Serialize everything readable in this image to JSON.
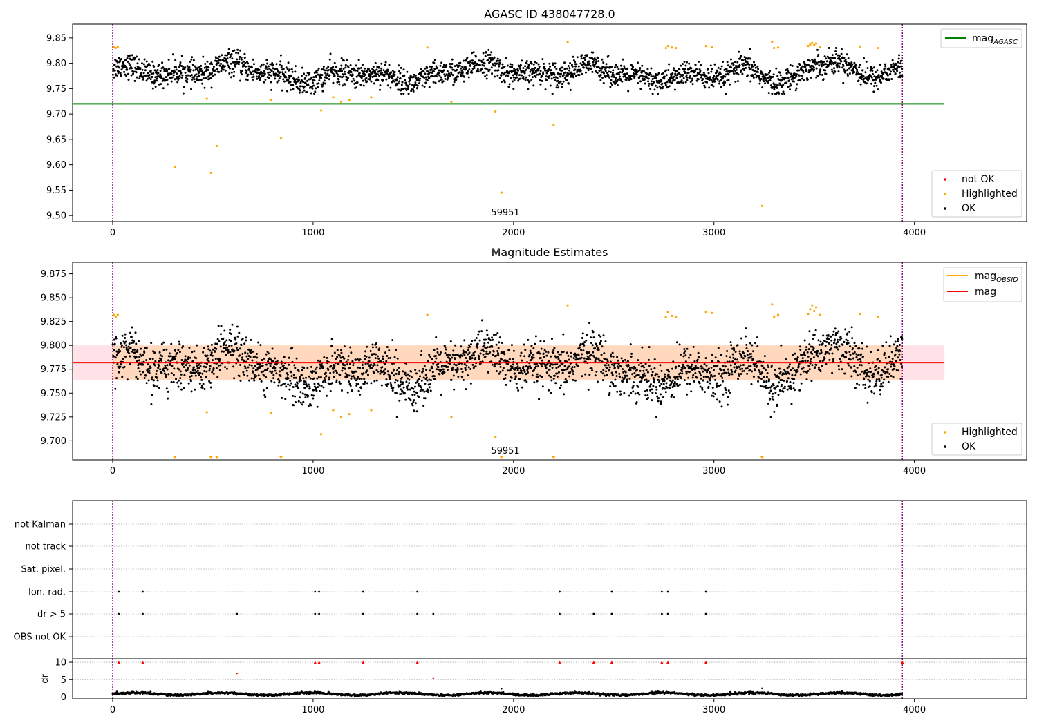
{
  "chart_data": [
    {
      "type": "scatter",
      "title": "AGASC ID 438047728.0",
      "xlim": [
        -200,
        4560
      ],
      "ylim": [
        9.488,
        9.877
      ],
      "xticks": [
        0,
        1000,
        2000,
        3000,
        4000
      ],
      "yticks": [
        9.5,
        9.55,
        9.6,
        9.65,
        9.7,
        9.75,
        9.8,
        9.85
      ],
      "ytick_labels": [
        "9.50",
        "9.55",
        "9.60",
        "9.65",
        "9.70",
        "9.75",
        "9.80",
        "9.85"
      ],
      "vlines": [
        0,
        3940
      ],
      "hline": {
        "name": "mag_AGASC",
        "y": 9.72,
        "x_range": [
          -200,
          4150
        ],
        "color": "#008000"
      },
      "annotation": {
        "text": "59951",
        "x": 1970,
        "y": 9.503
      },
      "ok_series": {
        "name": "OK",
        "color": "#000000",
        "x_range": [
          0,
          3940
        ],
        "y_range": [
          9.74,
          9.83
        ]
      },
      "highlighted_series": {
        "name": "Highlighted",
        "color": "#ffa500",
        "points": [
          [
            5,
            9.832
          ],
          [
            15,
            9.83
          ],
          [
            25,
            9.832
          ],
          [
            310,
            9.596
          ],
          [
            470,
            9.73
          ],
          [
            490,
            9.584
          ],
          [
            520,
            9.637
          ],
          [
            790,
            9.728
          ],
          [
            840,
            9.652
          ],
          [
            1040,
            9.707
          ],
          [
            1100,
            9.733
          ],
          [
            1140,
            9.724
          ],
          [
            1180,
            9.727
          ],
          [
            1290,
            9.733
          ],
          [
            1570,
            9.831
          ],
          [
            1690,
            9.724
          ],
          [
            1910,
            9.705
          ],
          [
            1940,
            9.545
          ],
          [
            2200,
            9.678
          ],
          [
            2270,
            9.842
          ],
          [
            2760,
            9.83
          ],
          [
            2770,
            9.834
          ],
          [
            2790,
            9.831
          ],
          [
            2810,
            9.83
          ],
          [
            2960,
            9.834
          ],
          [
            2990,
            9.832
          ],
          [
            3240,
            9.519
          ],
          [
            3290,
            9.842
          ],
          [
            3300,
            9.83
          ],
          [
            3320,
            9.831
          ],
          [
            3470,
            9.834
          ],
          [
            3480,
            9.837
          ],
          [
            3490,
            9.84
          ],
          [
            3500,
            9.836
          ],
          [
            3510,
            9.839
          ],
          [
            3530,
            9.832
          ],
          [
            3730,
            9.833
          ],
          [
            3820,
            9.83
          ]
        ]
      },
      "legend_top": [
        {
          "label": "mag",
          "subscript": "AGASC",
          "color": "#008000"
        }
      ],
      "legend_bottom": [
        {
          "label": "not OK",
          "color": "#ff0000"
        },
        {
          "label": "Highlighted",
          "color": "#ffa500"
        },
        {
          "label": "OK",
          "color": "#000000"
        }
      ]
    },
    {
      "type": "scatter",
      "title": "Magnitude Estimates",
      "xlim": [
        -200,
        4560
      ],
      "ylim": [
        9.68,
        9.887
      ],
      "xticks": [
        0,
        1000,
        2000,
        3000,
        4000
      ],
      "yticks": [
        9.7,
        9.725,
        9.75,
        9.775,
        9.8,
        9.825,
        9.85,
        9.875
      ],
      "ytick_labels": [
        "9.700",
        "9.725",
        "9.750",
        "9.775",
        "9.800",
        "9.825",
        "9.850",
        "9.875"
      ],
      "vlines": [
        0,
        3940
      ],
      "mag_line": {
        "name": "mag",
        "y": 9.782,
        "x_range": [
          -200,
          4150
        ],
        "color": "#ff0000"
      },
      "mag_band": {
        "y_low": 9.764,
        "y_high": 9.8,
        "x_range": [
          -200,
          4150
        ],
        "color": "#ffc0cb"
      },
      "annotation": {
        "text": "59951",
        "x": 1970,
        "y": 9.689
      },
      "ok_series": {
        "name": "OK",
        "color": "#000000",
        "x_range": [
          0,
          3940
        ],
        "y_range": [
          9.725,
          9.83
        ]
      },
      "highlighted_series": {
        "name": "Highlighted",
        "color": "#ffa500",
        "points": [
          [
            5,
            9.832
          ],
          [
            15,
            9.83
          ],
          [
            25,
            9.832
          ],
          [
            470,
            9.73
          ],
          [
            790,
            9.729
          ],
          [
            1040,
            9.707
          ],
          [
            1100,
            9.732
          ],
          [
            1140,
            9.725
          ],
          [
            1180,
            9.728
          ],
          [
            1290,
            9.732
          ],
          [
            1570,
            9.832
          ],
          [
            1690,
            9.725
          ],
          [
            1910,
            9.704
          ],
          [
            2270,
            9.842
          ],
          [
            2760,
            9.83
          ],
          [
            2770,
            9.835
          ],
          [
            2790,
            9.831
          ],
          [
            2810,
            9.83
          ],
          [
            2960,
            9.835
          ],
          [
            2990,
            9.834
          ],
          [
            3290,
            9.843
          ],
          [
            3300,
            9.83
          ],
          [
            3320,
            9.832
          ],
          [
            3470,
            9.833
          ],
          [
            3480,
            9.838
          ],
          [
            3490,
            9.842
          ],
          [
            3500,
            9.836
          ],
          [
            3510,
            9.84
          ],
          [
            3530,
            9.832
          ],
          [
            3730,
            9.833
          ],
          [
            3820,
            9.83
          ]
        ]
      },
      "offscale_markers": {
        "color": "#ffa500",
        "x": [
          310,
          490,
          520,
          840,
          1940,
          2200,
          3240
        ]
      },
      "legend_top": [
        {
          "label": "mag",
          "subscript": "OBSID",
          "color": "#ffa500"
        },
        {
          "label": "mag",
          "subscript": "",
          "color": "#ff0000"
        }
      ],
      "legend_bottom": [
        {
          "label": "Highlighted",
          "color": "#ffa500"
        },
        {
          "label": "OK",
          "color": "#000000"
        }
      ]
    },
    {
      "type": "scatter",
      "title": "",
      "xlim": [
        -200,
        4560
      ],
      "vlines": [
        0,
        3940
      ],
      "flag_rows": [
        "not Kalman",
        "not track",
        "Sat. pixel.",
        "Ion. rad.",
        "dr > 5",
        "OBS not OK"
      ],
      "flags": {
        "Ion. rad.": [
          30,
          150,
          1010,
          1030,
          1250,
          1520,
          2230,
          2490,
          2740,
          2770,
          2960
        ],
        "dr > 5": [
          30,
          150,
          620,
          1010,
          1030,
          1250,
          1520,
          1600,
          2230,
          2400,
          2490,
          2740,
          2770,
          2960
        ]
      }
    },
    {
      "type": "scatter",
      "title": "",
      "xlim": [
        -200,
        4560
      ],
      "ylim": [
        -0.5,
        11
      ],
      "yticks": [
        0,
        5,
        10
      ],
      "ytick_labels": [
        "0",
        "5",
        "10"
      ],
      "xticks": [
        0,
        1000,
        2000,
        3000,
        4000
      ],
      "ylabel": "dr",
      "vlines": [
        0,
        3940
      ],
      "dr_series": {
        "name": "dr",
        "color": "#000000",
        "x_range": [
          0,
          3940
        ],
        "y_range": [
          0.2,
          1.6
        ]
      },
      "dr_high_points": [
        [
          30,
          10
        ],
        [
          150,
          10
        ],
        [
          1010,
          10
        ],
        [
          1030,
          10
        ],
        [
          1250,
          10
        ],
        [
          1520,
          10
        ],
        [
          2230,
          10
        ],
        [
          2400,
          10
        ],
        [
          2490,
          10
        ],
        [
          2740,
          10
        ],
        [
          2770,
          10
        ],
        [
          2960,
          10
        ],
        [
          3940,
          10
        ]
      ],
      "dr_outliers": [
        [
          620,
          6.8
        ],
        [
          1600,
          5.3
        ],
        [
          1940,
          2.4
        ],
        [
          3240,
          2.5
        ]
      ],
      "outlier_colors": [
        "#ff0000",
        "#ff0000",
        "#000000",
        "#000000"
      ]
    }
  ]
}
